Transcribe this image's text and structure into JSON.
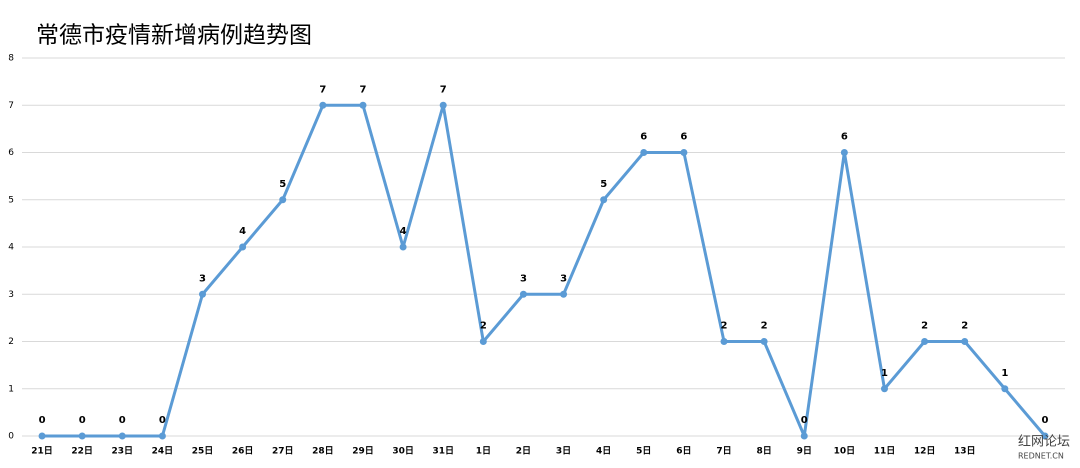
{
  "chart_data": {
    "type": "line",
    "title": "常德市疫情新增病例趋势图",
    "categories": [
      "21日",
      "22日",
      "23日",
      "24日",
      "25日",
      "26日",
      "27日",
      "28日",
      "29日",
      "30日",
      "31日",
      "1日",
      "2日",
      "3日",
      "4日",
      "5日",
      "6日",
      "7日",
      "8日",
      "9日",
      "10日",
      "11日",
      "12日",
      "13日",
      null,
      null
    ],
    "values": [
      0,
      0,
      0,
      0,
      3,
      4,
      5,
      7,
      7,
      4,
      7,
      2,
      3,
      3,
      5,
      6,
      6,
      2,
      2,
      0,
      6,
      1,
      2,
      2,
      1,
      0
    ],
    "color": "#5b9bd5",
    "ylim": [
      0,
      8
    ],
    "yticks": [
      0,
      1,
      2,
      3,
      4,
      5,
      6,
      7,
      8
    ],
    "grid": true,
    "watermark": {
      "title": "红网论坛",
      "subtitle": "REDNET.CN"
    }
  }
}
